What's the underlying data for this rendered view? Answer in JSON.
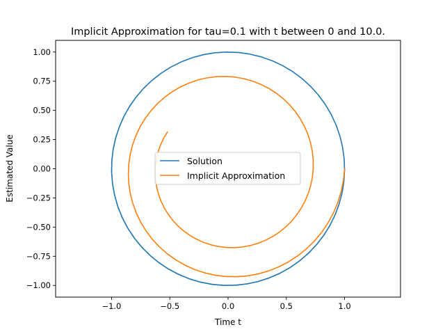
{
  "chart_data": {
    "type": "line",
    "title": "Implicit Approximation for tau=0.1 with t between 0 and 10.0.",
    "xlabel": "Time t",
    "ylabel": "Estimated Value",
    "xlim": [
      -1.48,
      1.48
    ],
    "ylim": [
      -1.1,
      1.1
    ],
    "xticks": [
      -1.0,
      -0.5,
      0.0,
      0.5,
      1.0
    ],
    "xtick_labels": [
      "−1.0",
      "−0.5",
      "0.0",
      "0.5",
      "1.0"
    ],
    "yticks": [
      -1.0,
      -0.75,
      -0.5,
      -0.25,
      0.0,
      0.25,
      0.5,
      0.75,
      1.0
    ],
    "ytick_labels": [
      "−1.00",
      "−0.75",
      "−0.50",
      "−0.25",
      "0.00",
      "0.25",
      "0.50",
      "0.75",
      "1.00"
    ],
    "grid": false,
    "legend_position": "center",
    "series": [
      {
        "name": "Solution",
        "color": "#1f77b4",
        "parametric": "circle",
        "t_start": 0,
        "t_end": 10.0,
        "tau": 0.1
      },
      {
        "name": "Implicit Approximation",
        "color": "#ff7f0e",
        "parametric": "implicit_euler_spiral",
        "t_start": 0,
        "t_end": 10.0,
        "tau": 0.1
      }
    ]
  }
}
